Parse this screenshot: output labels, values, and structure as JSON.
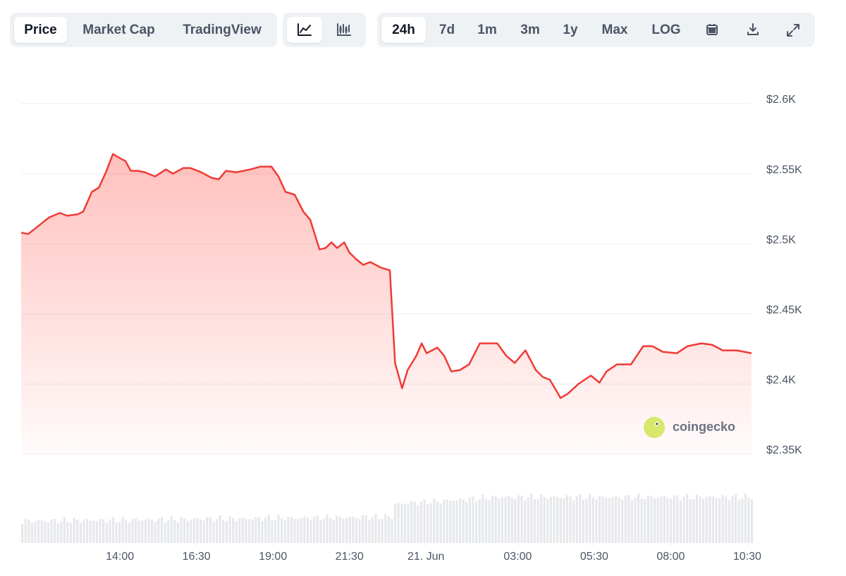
{
  "toolbar": {
    "views": [
      "Price",
      "Market Cap",
      "TradingView"
    ],
    "ranges": [
      "24h",
      "7d",
      "1m",
      "3m",
      "1y",
      "Max",
      "LOG"
    ]
  },
  "watermark": "coingecko",
  "chart_data": {
    "type": "line",
    "color": "#ef3b36",
    "grid": true,
    "x": [
      10.77,
      11.0,
      11.35,
      11.58,
      11.7,
      12.04,
      12.27,
      12.62,
      12.8,
      13.08,
      13.31,
      13.54,
      13.77,
      14.0,
      14.18,
      14.35,
      14.58,
      14.81,
      15.15,
      15.5,
      15.73,
      16.07,
      16.3,
      16.65,
      17.0,
      17.23,
      17.46,
      17.8,
      18.26,
      18.6,
      18.95,
      19.18,
      19.41,
      19.71,
      19.99,
      20.22,
      20.52,
      20.72,
      20.91,
      21.1,
      21.33,
      21.49,
      21.72,
      21.95,
      22.18,
      22.53,
      22.82,
      22.99,
      23.22,
      23.4,
      23.68,
      23.86,
      24.02,
      24.37,
      24.6,
      24.83,
      25.11,
      25.41,
      25.76,
      25.99,
      26.33,
      26.63,
      26.9,
      27.25,
      27.59,
      27.82,
      28.05,
      28.4,
      28.63,
      28.98,
      29.39,
      29.67,
      29.9,
      30.24,
      30.7,
      31.1,
      31.4,
      31.74,
      32.2,
      32.55,
      33.0,
      33.35,
      33.7,
      34.16,
      34.64
    ],
    "values": [
      2508,
      2507,
      2513,
      2517,
      2519,
      2522,
      2520,
      2521,
      2523,
      2537,
      2540,
      2551,
      2564,
      2561,
      2559,
      2552,
      2552,
      2551,
      2548,
      2553,
      2550,
      2554,
      2554,
      2551,
      2547,
      2546,
      2552,
      2551,
      2553,
      2555,
      2555,
      2548,
      2537,
      2535,
      2523,
      2517,
      2496,
      2497,
      2501,
      2497,
      2501,
      2494,
      2489,
      2485,
      2487,
      2483,
      2481,
      2415,
      2397,
      2410,
      2420,
      2429,
      2422,
      2426,
      2420,
      2409,
      2410,
      2414,
      2429,
      2429,
      2429,
      2420,
      2415,
      2424,
      2410,
      2405,
      2403,
      2390,
      2393,
      2400,
      2406,
      2401,
      2409,
      2414,
      2414,
      2427,
      2427,
      2423,
      2422,
      2427,
      2429,
      2428,
      2424,
      2424,
      2422
    ],
    "xlim": [
      10.77,
      34.64
    ],
    "xticks": [
      {
        "value": 14,
        "label": "14:00"
      },
      {
        "value": 16.5,
        "label": "16:30"
      },
      {
        "value": 19,
        "label": "19:00"
      },
      {
        "value": 21.5,
        "label": "21:30"
      },
      {
        "value": 24,
        "label": "21. Jun"
      },
      {
        "value": 27,
        "label": "03:00"
      },
      {
        "value": 29.5,
        "label": "05:30"
      },
      {
        "value": 32,
        "label": "08:00"
      },
      {
        "value": 34.5,
        "label": "10:30"
      }
    ],
    "ylim": [
      2350,
      2600
    ],
    "yticks": [
      {
        "value": 2350,
        "label": "$2.35K"
      },
      {
        "value": 2400,
        "label": "$2.4K"
      },
      {
        "value": 2450,
        "label": "$2.45K"
      },
      {
        "value": 2500,
        "label": "$2.5K"
      },
      {
        "value": 2550,
        "label": "$2.55K"
      },
      {
        "value": 2600,
        "label": "$2.6K"
      }
    ]
  }
}
